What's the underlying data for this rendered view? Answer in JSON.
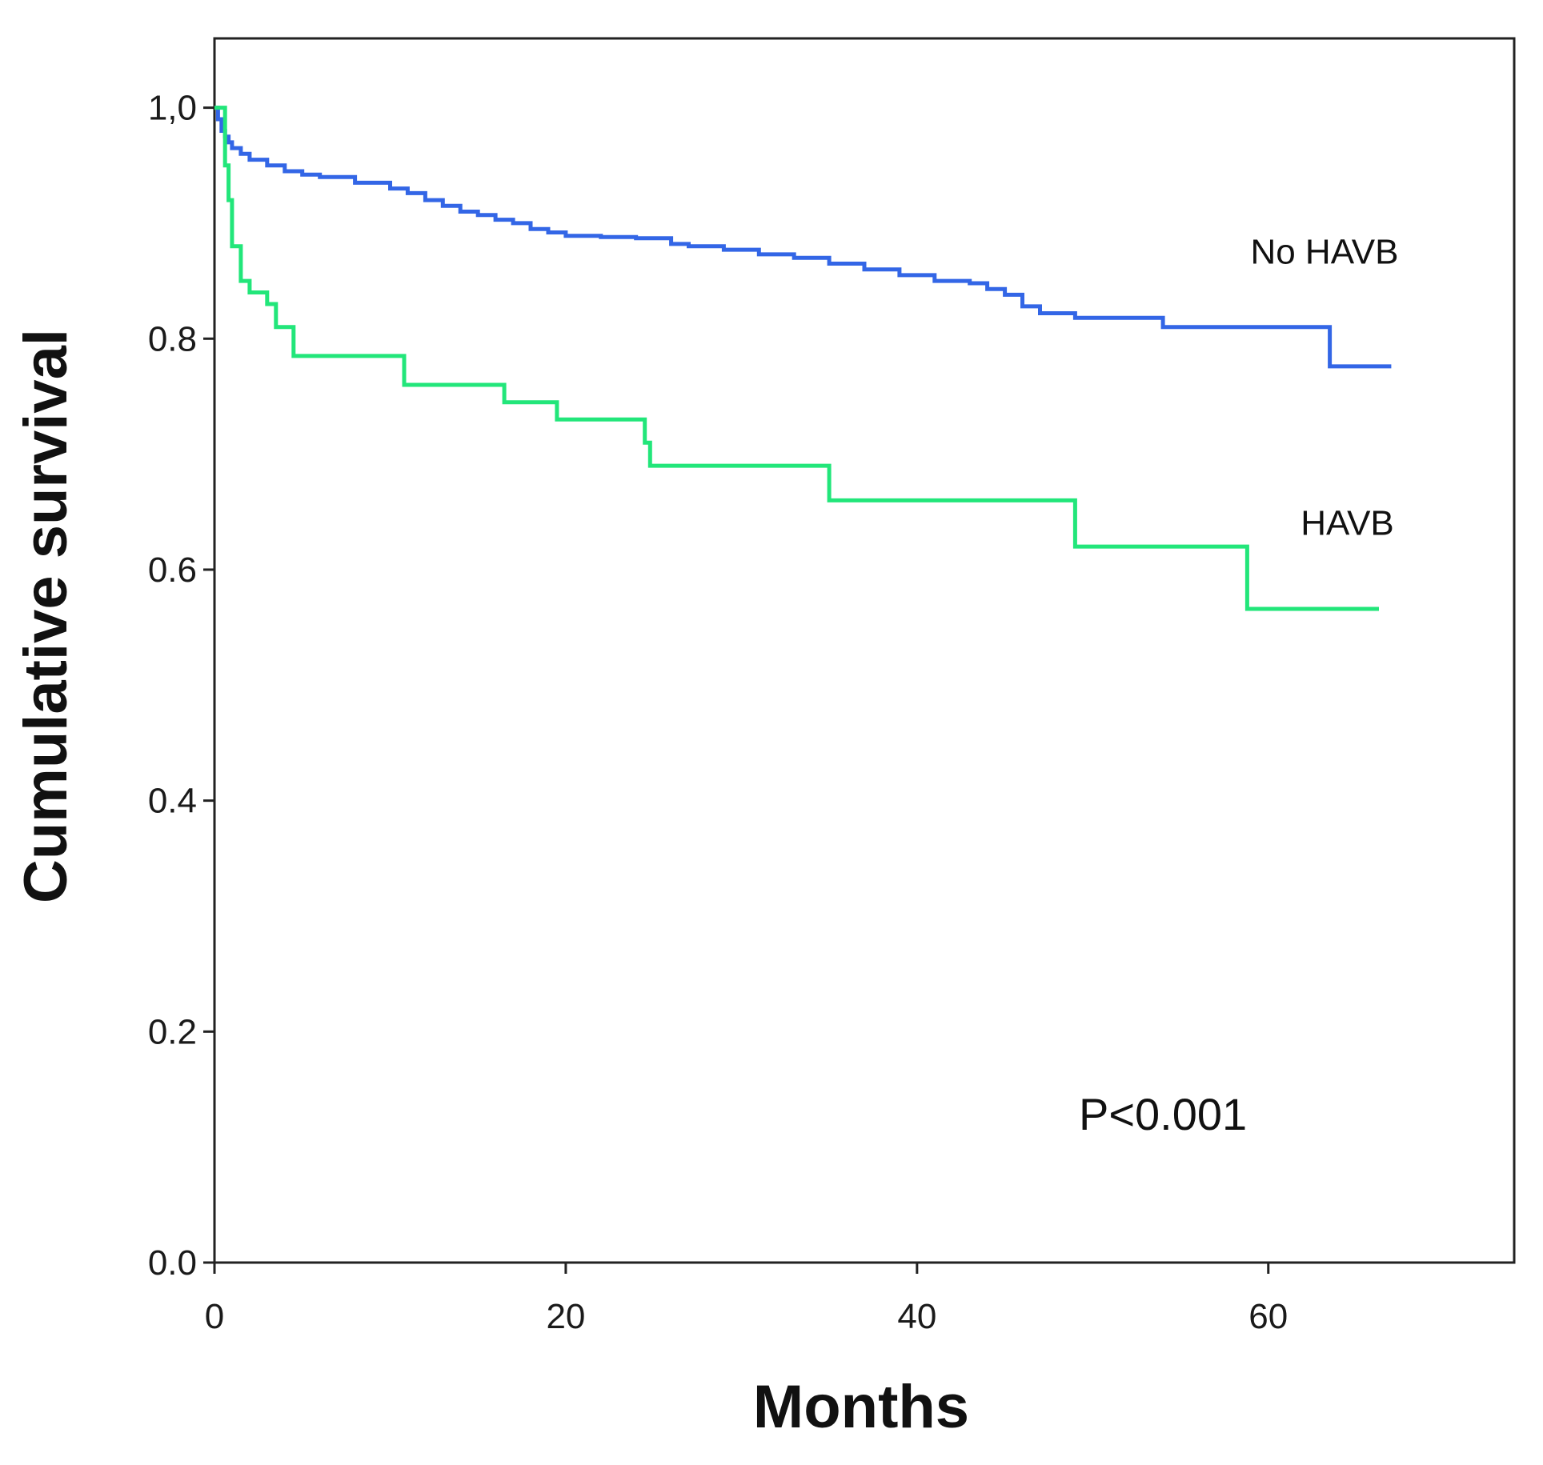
{
  "chart_data": {
    "type": "line",
    "title": "",
    "xlabel": "Months",
    "ylabel": "Cumulative survival",
    "xlim": [
      0,
      74
    ],
    "ylim": [
      0.0,
      1.06
    ],
    "grid": false,
    "x_ticks": [
      {
        "value": 0,
        "label": "0"
      },
      {
        "value": 20,
        "label": "20"
      },
      {
        "value": 40,
        "label": "40"
      },
      {
        "value": 60,
        "label": "60"
      }
    ],
    "y_ticks": [
      {
        "value": 0.0,
        "label": "0.0"
      },
      {
        "value": 0.2,
        "label": "0.2"
      },
      {
        "value": 0.4,
        "label": "0.4"
      },
      {
        "value": 0.6,
        "label": "0.6"
      },
      {
        "value": 0.8,
        "label": "0.8"
      },
      {
        "value": 1.0,
        "label": "1,0"
      }
    ],
    "series": [
      {
        "name": "No HAVB",
        "color": "#3366e6",
        "step": true,
        "label_position": {
          "x": 63.2,
          "y": 0.865
        },
        "x": [
          0.0,
          0.2,
          0.4,
          0.6,
          0.8,
          1.0,
          1.5,
          2.0,
          3.0,
          4.0,
          5.0,
          6.0,
          8.0,
          10.0,
          11.0,
          12.0,
          13.0,
          14.0,
          15.0,
          16.0,
          17.0,
          18.0,
          19.0,
          20.0,
          22.0,
          24.0,
          26.0,
          27.0,
          29.0,
          31.0,
          33.0,
          35.0,
          37.0,
          39.0,
          41.0,
          43.0,
          44.0,
          45.0,
          46.0,
          47.0,
          49.0,
          52.0,
          54.0,
          56.0,
          58.0,
          60.0,
          62.0,
          63.5,
          65.0,
          67.0
        ],
        "y": [
          1.0,
          0.99,
          0.98,
          0.975,
          0.97,
          0.965,
          0.96,
          0.955,
          0.95,
          0.945,
          0.942,
          0.94,
          0.935,
          0.93,
          0.926,
          0.92,
          0.915,
          0.91,
          0.907,
          0.903,
          0.9,
          0.895,
          0.892,
          0.889,
          0.888,
          0.887,
          0.882,
          0.88,
          0.877,
          0.873,
          0.87,
          0.865,
          0.86,
          0.855,
          0.85,
          0.848,
          0.843,
          0.838,
          0.828,
          0.822,
          0.818,
          0.818,
          0.81,
          0.81,
          0.81,
          0.81,
          0.81,
          0.776,
          0.776,
          0.776
        ]
      },
      {
        "name": "HAVB",
        "color": "#22e67a",
        "step": true,
        "label_position": {
          "x": 64.5,
          "y": 0.63
        },
        "x": [
          0.0,
          0.6,
          0.8,
          1.0,
          1.5,
          2.0,
          3.0,
          3.5,
          4.5,
          10.5,
          10.8,
          16.5,
          19.5,
          24.5,
          24.8,
          35.0,
          49.0,
          58.8,
          66.3
        ],
        "y": [
          1.0,
          0.95,
          0.92,
          0.88,
          0.85,
          0.84,
          0.83,
          0.81,
          0.785,
          0.785,
          0.76,
          0.745,
          0.73,
          0.71,
          0.69,
          0.66,
          0.62,
          0.566,
          0.566
        ]
      }
    ],
    "annotations": [
      {
        "text": "P<0.001",
        "x": 54.0,
        "y": 0.115
      }
    ]
  }
}
